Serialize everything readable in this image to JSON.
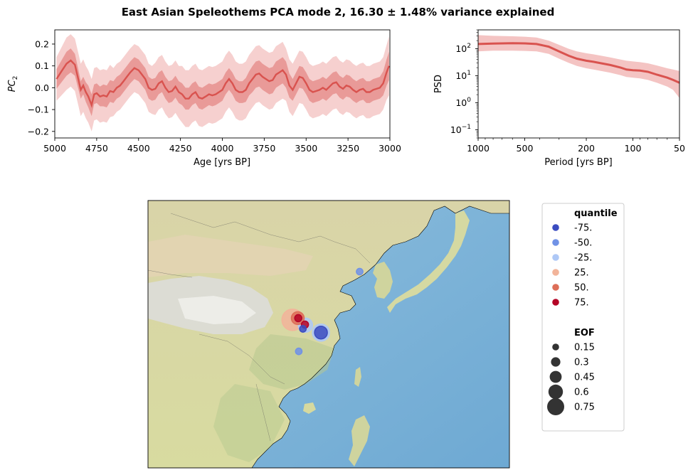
{
  "figure": {
    "title": "East Asian Speleothems PCA mode 2, 16.30 ± 1.48% variance explained"
  },
  "chart_data": [
    {
      "type": "line",
      "name": "pc-timeseries",
      "xlabel": "Age [yrs BP]",
      "ylabel_main": "PC",
      "ylabel_sub": "2",
      "xlim": [
        5000,
        3000
      ],
      "ylim": [
        -0.23,
        0.265
      ],
      "xticks": [
        5000,
        4750,
        4500,
        4250,
        4000,
        3750,
        3500,
        3250,
        3000
      ],
      "xtick_labels": [
        "5000",
        "4750",
        "4500",
        "4250",
        "4000",
        "3750",
        "3500",
        "3250",
        "3000"
      ],
      "yticks": [
        0.2,
        0.1,
        0.0,
        -0.1,
        -0.2
      ],
      "ytick_labels": [
        "0.2",
        "0.1",
        "0.0",
        "−0.1",
        "−0.2"
      ],
      "x": [
        4990,
        4960,
        4930,
        4905,
        4880,
        4860,
        4845,
        4830,
        4815,
        4800,
        4780,
        4765,
        4750,
        4730,
        4710,
        4690,
        4670,
        4650,
        4630,
        4610,
        4590,
        4570,
        4550,
        4525,
        4500,
        4480,
        4460,
        4440,
        4420,
        4400,
        4380,
        4360,
        4340,
        4320,
        4300,
        4280,
        4260,
        4240,
        4220,
        4200,
        4180,
        4160,
        4140,
        4120,
        4100,
        4080,
        4060,
        4040,
        4020,
        4000,
        3980,
        3960,
        3940,
        3920,
        3900,
        3880,
        3860,
        3840,
        3820,
        3800,
        3780,
        3760,
        3740,
        3720,
        3700,
        3680,
        3660,
        3640,
        3620,
        3600,
        3580,
        3560,
        3540,
        3520,
        3500,
        3480,
        3460,
        3440,
        3420,
        3400,
        3380,
        3360,
        3340,
        3320,
        3300,
        3280,
        3260,
        3240,
        3220,
        3200,
        3180,
        3160,
        3140,
        3120,
        3100,
        3080,
        3060,
        3040,
        3020,
        3005
      ],
      "median": [
        0.04,
        0.075,
        0.11,
        0.125,
        0.105,
        0.04,
        -0.01,
        0.01,
        -0.02,
        -0.04,
        -0.08,
        -0.03,
        -0.025,
        -0.04,
        -0.035,
        -0.04,
        -0.015,
        -0.02,
        0.0,
        0.01,
        0.03,
        0.05,
        0.07,
        0.09,
        0.08,
        0.06,
        0.04,
        0.0,
        -0.01,
        -0.005,
        0.02,
        0.03,
        0.0,
        -0.02,
        -0.015,
        0.005,
        -0.02,
        -0.03,
        -0.05,
        -0.05,
        -0.03,
        -0.02,
        -0.045,
        -0.05,
        -0.04,
        -0.03,
        -0.035,
        -0.03,
        -0.02,
        -0.01,
        0.02,
        0.04,
        0.02,
        -0.01,
        -0.02,
        -0.02,
        -0.01,
        0.02,
        0.04,
        0.06,
        0.065,
        0.05,
        0.04,
        0.03,
        0.035,
        0.06,
        0.07,
        0.08,
        0.06,
        0.01,
        -0.01,
        0.02,
        0.05,
        0.045,
        0.02,
        -0.01,
        -0.02,
        -0.015,
        -0.01,
        0.0,
        -0.01,
        0.005,
        0.02,
        0.025,
        0.005,
        -0.005,
        0.01,
        0.005,
        -0.01,
        -0.02,
        -0.01,
        -0.005,
        -0.02,
        -0.02,
        -0.01,
        -0.005,
        0.0,
        0.02,
        0.07,
        0.1
      ],
      "band_inner_width": [
        0.045,
        0.05,
        0.055,
        0.055,
        0.05,
        0.045,
        0.04,
        0.04,
        0.045,
        0.05,
        0.05,
        0.045,
        0.045,
        0.045,
        0.05,
        0.05,
        0.05,
        0.05,
        0.05,
        0.05,
        0.05,
        0.05,
        0.05,
        0.05,
        0.05,
        0.05,
        0.05,
        0.05,
        0.05,
        0.05,
        0.05,
        0.05,
        0.05,
        0.05,
        0.05,
        0.05,
        0.05,
        0.05,
        0.05,
        0.05,
        0.05,
        0.05,
        0.05,
        0.05,
        0.05,
        0.05,
        0.05,
        0.05,
        0.05,
        0.05,
        0.05,
        0.05,
        0.05,
        0.05,
        0.05,
        0.05,
        0.055,
        0.055,
        0.06,
        0.06,
        0.06,
        0.06,
        0.06,
        0.06,
        0.06,
        0.06,
        0.06,
        0.06,
        0.06,
        0.055,
        0.05,
        0.05,
        0.05,
        0.05,
        0.05,
        0.05,
        0.05,
        0.05,
        0.05,
        0.05,
        0.05,
        0.05,
        0.05,
        0.05,
        0.05,
        0.05,
        0.05,
        0.05,
        0.05,
        0.05,
        0.05,
        0.05,
        0.05,
        0.05,
        0.05,
        0.05,
        0.05,
        0.055,
        0.06,
        0.065
      ],
      "band_outer_width": [
        0.1,
        0.11,
        0.12,
        0.12,
        0.12,
        0.12,
        0.12,
        0.12,
        0.12,
        0.12,
        0.12,
        0.12,
        0.12,
        0.12,
        0.12,
        0.12,
        0.12,
        0.11,
        0.11,
        0.11,
        0.11,
        0.11,
        0.11,
        0.11,
        0.11,
        0.11,
        0.11,
        0.11,
        0.11,
        0.12,
        0.12,
        0.12,
        0.12,
        0.12,
        0.12,
        0.12,
        0.12,
        0.13,
        0.13,
        0.13,
        0.13,
        0.13,
        0.13,
        0.13,
        0.13,
        0.13,
        0.13,
        0.13,
        0.13,
        0.13,
        0.13,
        0.13,
        0.13,
        0.13,
        0.13,
        0.13,
        0.13,
        0.13,
        0.13,
        0.13,
        0.13,
        0.13,
        0.13,
        0.13,
        0.13,
        0.13,
        0.13,
        0.13,
        0.12,
        0.12,
        0.12,
        0.12,
        0.12,
        0.12,
        0.12,
        0.12,
        0.12,
        0.12,
        0.12,
        0.12,
        0.12,
        0.12,
        0.12,
        0.12,
        0.12,
        0.12,
        0.12,
        0.12,
        0.12,
        0.12,
        0.12,
        0.12,
        0.12,
        0.12,
        0.12,
        0.12,
        0.12,
        0.12,
        0.125,
        0.135
      ],
      "colors": {
        "line": "#d9534f",
        "inner": "#e99a98",
        "outer": "#f6d0cf"
      }
    },
    {
      "type": "line",
      "name": "psd",
      "xlabel": "Period [yrs BP]",
      "ylabel": "PSD",
      "xscale": "log",
      "yscale": "log",
      "xlim": [
        1000,
        50
      ],
      "ylim": [
        0.05,
        500
      ],
      "xticks": [
        1000,
        500,
        200,
        100,
        50
      ],
      "xtick_labels": [
        "1000",
        "500",
        "200",
        "100",
        "50"
      ],
      "yticks": [
        100,
        10,
        1,
        0.1
      ],
      "ytick_labels_base": [
        "10",
        "10",
        "10",
        "10"
      ],
      "ytick_labels_exp": [
        "2",
        "1",
        "0",
        "−1"
      ],
      "period": [
        1000,
        800,
        600,
        500,
        420,
        350,
        300,
        260,
        230,
        200,
        180,
        160,
        140,
        120,
        110,
        100,
        90,
        80,
        70,
        60,
        55,
        50
      ],
      "median": [
        150,
        155,
        160,
        158,
        150,
        120,
        80,
        55,
        43,
        36,
        33,
        29,
        25,
        20,
        17,
        16,
        15.5,
        14,
        11,
        8.5,
        7,
        5.5
      ],
      "upper": [
        320,
        300,
        290,
        280,
        260,
        200,
        140,
        100,
        80,
        68,
        62,
        55,
        48,
        40,
        36,
        34,
        32,
        29,
        24,
        19,
        17,
        15
      ],
      "lower": [
        80,
        85,
        85,
        83,
        80,
        65,
        43,
        30,
        23,
        19,
        17,
        15,
        13,
        10.5,
        9,
        8.5,
        8,
        7,
        5.5,
        4,
        3,
        1.5
      ],
      "colors": {
        "line": "#d9534f",
        "band": "#f4c4c3"
      }
    },
    {
      "type": "scatter",
      "name": "eof-map",
      "region": "East Asia",
      "points": [
        {
          "lon": 104.0,
          "lat": 32.7,
          "quantile": "25.",
          "eof": 0.6
        },
        {
          "lon": 105.0,
          "lat": 33.0,
          "quantile": "50.",
          "eof": 0.3
        },
        {
          "lon": 105.1,
          "lat": 33.0,
          "quantile": "75.",
          "eof": 0.1
        },
        {
          "lon": 106.5,
          "lat": 31.7,
          "quantile": "-25.",
          "eof": 0.35
        },
        {
          "lon": 106.4,
          "lat": 31.8,
          "quantile": "75.",
          "eof": 0.1
        },
        {
          "lon": 106.0,
          "lat": 31.0,
          "quantile": "-75.",
          "eof": 0.08
        },
        {
          "lon": 109.5,
          "lat": 30.3,
          "quantile": "-25.",
          "eof": 0.45
        },
        {
          "lon": 109.5,
          "lat": 30.3,
          "quantile": "-75.",
          "eof": 0.3
        },
        {
          "lon": 105.2,
          "lat": 26.8,
          "quantile": "-50.",
          "eof": 0.08
        },
        {
          "lon": 117.0,
          "lat": 41.7,
          "quantile": "-50.",
          "eof": 0.08
        }
      ]
    }
  ],
  "legend": {
    "quantile_title": "quantile",
    "quantile_items": [
      {
        "label": "-75.",
        "color": "#3b4cc0"
      },
      {
        "label": "-50.",
        "color": "#7092e6"
      },
      {
        "label": "-25.",
        "color": "#aec8f6"
      },
      {
        "label": "25.",
        "color": "#f2b49a"
      },
      {
        "label": "50.",
        "color": "#dd6e58"
      },
      {
        "label": "75.",
        "color": "#b40426"
      }
    ],
    "eof_title": "EOF",
    "eof_items": [
      {
        "label": "0.15",
        "value": 0.15
      },
      {
        "label": "0.3",
        "value": 0.3
      },
      {
        "label": "0.45",
        "value": 0.45
      },
      {
        "label": "0.6",
        "value": 0.6
      },
      {
        "label": "0.75",
        "value": 0.75
      }
    ]
  }
}
